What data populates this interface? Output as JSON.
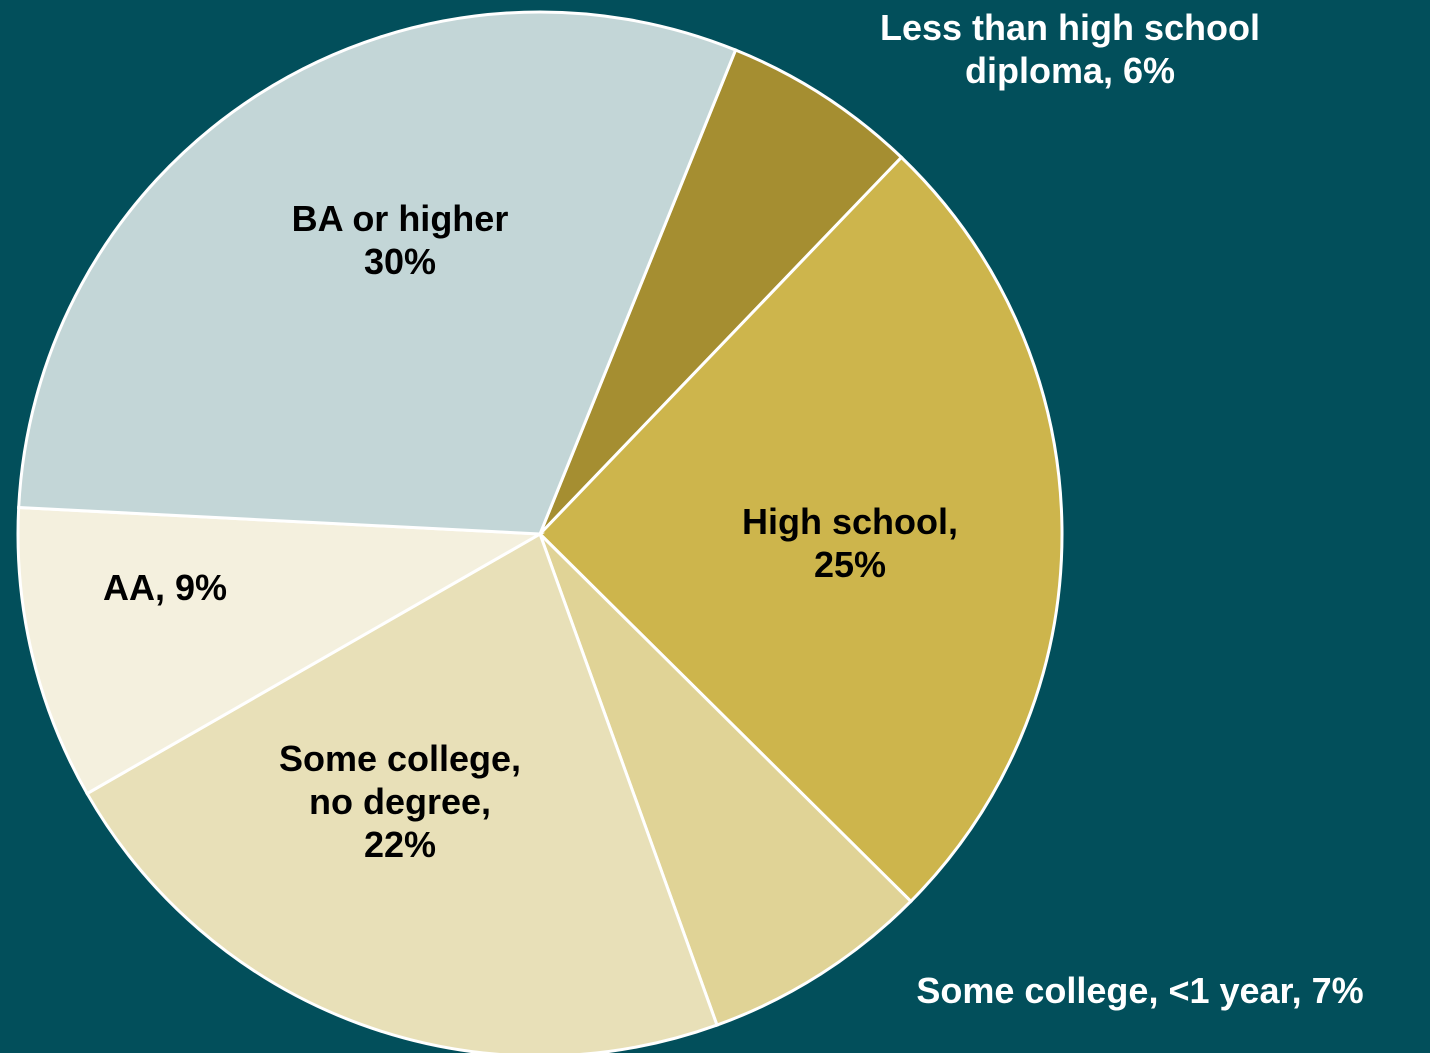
{
  "colors": {
    "background": "#024f5b",
    "slice_border": "#ffffff"
  },
  "chart_data": {
    "type": "pie",
    "title": "",
    "start_angle_deg": -68,
    "slices": [
      {
        "name": "Less than high school diploma",
        "value": 6,
        "label": "Less than high school\ndiploma, 6%",
        "color": "#a58e31",
        "label_position": "outside-top-right"
      },
      {
        "name": "High school",
        "value": 25,
        "label": "High school,\n25%",
        "color": "#cdb54c",
        "label_position": "inside"
      },
      {
        "name": "Some college, <1 year",
        "value": 7,
        "label": "Some college, <1 year, 7%",
        "color": "#e0d396",
        "label_position": "outside-bottom-right"
      },
      {
        "name": "Some college, no degree",
        "value": 22,
        "label": "Some college,\nno degree,\n22%",
        "color": "#e8e0b8",
        "label_position": "inside"
      },
      {
        "name": "AA",
        "value": 9,
        "label": "AA, 9%",
        "color": "#f4f0de",
        "label_position": "inside"
      },
      {
        "name": "BA or higher",
        "value": 30,
        "label": "BA or higher\n30%",
        "color": "#c3d6d7",
        "label_position": "inside"
      }
    ]
  }
}
